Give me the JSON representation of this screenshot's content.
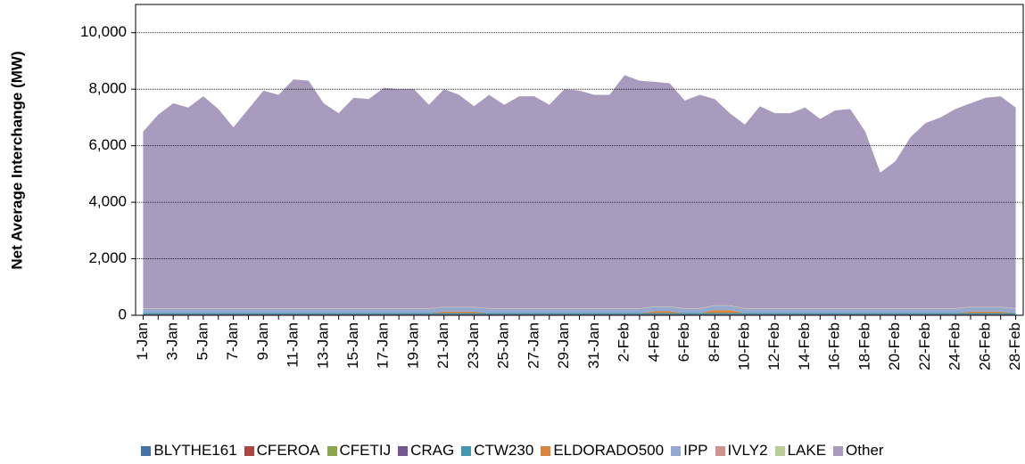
{
  "chart_data": {
    "type": "stacked_area",
    "y_label": "Net  Average  Interchange  (MW)",
    "categories": [
      "1-Jan",
      null,
      "3-Jan",
      null,
      "5-Jan",
      null,
      "7-Jan",
      null,
      "9-Jan",
      null,
      "11-Jan",
      null,
      "13-Jan",
      null,
      "15-Jan",
      null,
      "17-Jan",
      null,
      "19-Jan",
      null,
      "21-Jan",
      null,
      "23-Jan",
      null,
      "25-Jan",
      null,
      "27-Jan",
      null,
      "29-Jan",
      null,
      "31-Jan",
      null,
      "2-Feb",
      null,
      "4-Feb",
      null,
      "6-Feb",
      null,
      "8-Feb",
      null,
      "10-Feb",
      null,
      "12-Feb",
      null,
      "14-Feb",
      null,
      "16-Feb",
      null,
      "18-Feb",
      null,
      "20-Feb",
      null,
      "22-Feb",
      null,
      "24-Feb",
      null,
      "26-Feb",
      null,
      "28-Feb"
    ],
    "series": [
      {
        "name": "BLYTHE161",
        "color": "#4572a7",
        "values": [
          20,
          20,
          20,
          20,
          20,
          20,
          20,
          20,
          20,
          20,
          20,
          20,
          20,
          20,
          20,
          20,
          20,
          20,
          20,
          20,
          20,
          20,
          20,
          20,
          20,
          20,
          20,
          20,
          20,
          20,
          20,
          20,
          20,
          20,
          20,
          20,
          20,
          20,
          20,
          20,
          20,
          20,
          20,
          20,
          20,
          20,
          20,
          20,
          20,
          20,
          20,
          20,
          20,
          20,
          20,
          20,
          20,
          20,
          20
        ]
      },
      {
        "name": "CFEROA",
        "color": "#aa4643",
        "values": [
          0,
          0,
          0,
          0,
          0,
          0,
          0,
          0,
          0,
          0,
          0,
          0,
          0,
          0,
          0,
          0,
          0,
          0,
          0,
          0,
          0,
          0,
          0,
          0,
          0,
          0,
          0,
          0,
          0,
          0,
          0,
          0,
          0,
          0,
          0,
          0,
          0,
          0,
          0,
          0,
          0,
          0,
          0,
          0,
          0,
          0,
          0,
          0,
          0,
          0,
          0,
          0,
          0,
          0,
          0,
          0,
          0,
          0,
          0
        ]
      },
      {
        "name": "CFETIJ",
        "color": "#89a54e",
        "values": [
          0,
          0,
          0,
          0,
          0,
          0,
          0,
          0,
          0,
          0,
          0,
          0,
          0,
          0,
          0,
          0,
          0,
          0,
          0,
          0,
          0,
          0,
          0,
          0,
          0,
          0,
          0,
          0,
          0,
          0,
          0,
          0,
          0,
          0,
          0,
          0,
          0,
          0,
          0,
          0,
          0,
          0,
          0,
          0,
          0,
          0,
          0,
          0,
          0,
          0,
          0,
          0,
          0,
          0,
          0,
          0,
          0,
          0,
          0
        ]
      },
      {
        "name": "CRAG",
        "color": "#71588f",
        "values": [
          10,
          10,
          10,
          10,
          10,
          10,
          10,
          10,
          10,
          10,
          10,
          10,
          10,
          10,
          10,
          10,
          10,
          10,
          10,
          10,
          10,
          10,
          10,
          10,
          10,
          10,
          10,
          10,
          10,
          10,
          10,
          10,
          10,
          10,
          10,
          10,
          10,
          10,
          10,
          10,
          10,
          10,
          10,
          10,
          10,
          10,
          10,
          10,
          10,
          10,
          10,
          10,
          10,
          10,
          10,
          10,
          10,
          10,
          10
        ]
      },
      {
        "name": "CTW230",
        "color": "#4198af",
        "values": [
          50,
          50,
          50,
          50,
          50,
          50,
          50,
          50,
          50,
          50,
          50,
          50,
          50,
          50,
          50,
          50,
          50,
          50,
          50,
          50,
          50,
          50,
          50,
          50,
          50,
          50,
          50,
          50,
          50,
          50,
          50,
          50,
          50,
          50,
          50,
          50,
          50,
          50,
          50,
          50,
          50,
          50,
          50,
          50,
          50,
          50,
          50,
          50,
          50,
          50,
          50,
          50,
          50,
          50,
          50,
          50,
          50,
          50,
          50
        ]
      },
      {
        "name": "ELDORADO500",
        "color": "#db843d",
        "values": [
          0,
          0,
          0,
          0,
          0,
          0,
          0,
          0,
          0,
          0,
          0,
          0,
          0,
          0,
          0,
          0,
          0,
          0,
          0,
          0,
          50,
          50,
          50,
          0,
          0,
          0,
          0,
          0,
          0,
          0,
          0,
          0,
          0,
          0,
          60,
          60,
          0,
          0,
          100,
          100,
          0,
          0,
          0,
          0,
          0,
          0,
          0,
          0,
          0,
          0,
          0,
          0,
          0,
          0,
          0,
          50,
          50,
          50,
          0
        ]
      },
      {
        "name": "IPP",
        "color": "#93a9cf",
        "values": [
          150,
          150,
          150,
          150,
          150,
          150,
          150,
          150,
          150,
          150,
          150,
          150,
          150,
          150,
          150,
          150,
          150,
          150,
          150,
          150,
          150,
          150,
          150,
          150,
          150,
          150,
          150,
          150,
          150,
          150,
          150,
          150,
          150,
          150,
          150,
          150,
          150,
          150,
          150,
          150,
          150,
          150,
          150,
          150,
          150,
          150,
          150,
          150,
          150,
          150,
          150,
          150,
          150,
          150,
          150,
          150,
          150,
          150,
          150
        ]
      },
      {
        "name": "IVLY2",
        "color": "#d19392",
        "values": [
          10,
          10,
          10,
          10,
          10,
          10,
          10,
          10,
          10,
          10,
          10,
          10,
          10,
          10,
          10,
          10,
          10,
          10,
          10,
          10,
          10,
          10,
          10,
          10,
          10,
          10,
          10,
          10,
          10,
          10,
          10,
          10,
          10,
          10,
          10,
          10,
          10,
          10,
          10,
          10,
          10,
          10,
          10,
          10,
          10,
          10,
          10,
          10,
          10,
          10,
          10,
          10,
          10,
          10,
          10,
          10,
          10,
          10,
          10
        ]
      },
      {
        "name": "LAKE",
        "color": "#b9cd96",
        "values": [
          10,
          10,
          10,
          10,
          10,
          10,
          10,
          10,
          10,
          10,
          10,
          10,
          10,
          10,
          10,
          10,
          10,
          10,
          10,
          10,
          10,
          10,
          10,
          10,
          10,
          10,
          10,
          10,
          10,
          10,
          10,
          10,
          10,
          10,
          10,
          10,
          10,
          10,
          10,
          10,
          10,
          10,
          10,
          10,
          10,
          10,
          10,
          10,
          10,
          10,
          10,
          10,
          10,
          10,
          10,
          10,
          10,
          10,
          10
        ]
      },
      {
        "name": "Other",
        "color": "#a99bbd",
        "values": [
          6250,
          6850,
          7250,
          7100,
          7500,
          7050,
          6400,
          7050,
          7700,
          7550,
          8100,
          8050,
          7250,
          6900,
          7450,
          7400,
          7800,
          7750,
          7750,
          7200,
          7700,
          7500,
          7100,
          7550,
          7200,
          7500,
          7500,
          7200,
          7750,
          7700,
          7550,
          7550,
          8250,
          8050,
          7950,
          7900,
          7350,
          7550,
          7300,
          6800,
          6500,
          7150,
          6900,
          6900,
          7100,
          6700,
          7000,
          7050,
          6250,
          4800,
          5200,
          6050,
          6550,
          6750,
          7050,
          7200,
          7400,
          7450,
          7100
        ]
      }
    ],
    "ylim": [
      0,
      11000
    ],
    "yticks": [
      0,
      {
        "value": 2000,
        "label": "2,000"
      },
      {
        "value": 4000,
        "label": "4,000"
      },
      {
        "value": 6000,
        "label": "6,000"
      },
      {
        "value": 8000,
        "label": "8,000"
      },
      {
        "value": 10000,
        "label": "10,000"
      }
    ],
    "grid": true
  }
}
